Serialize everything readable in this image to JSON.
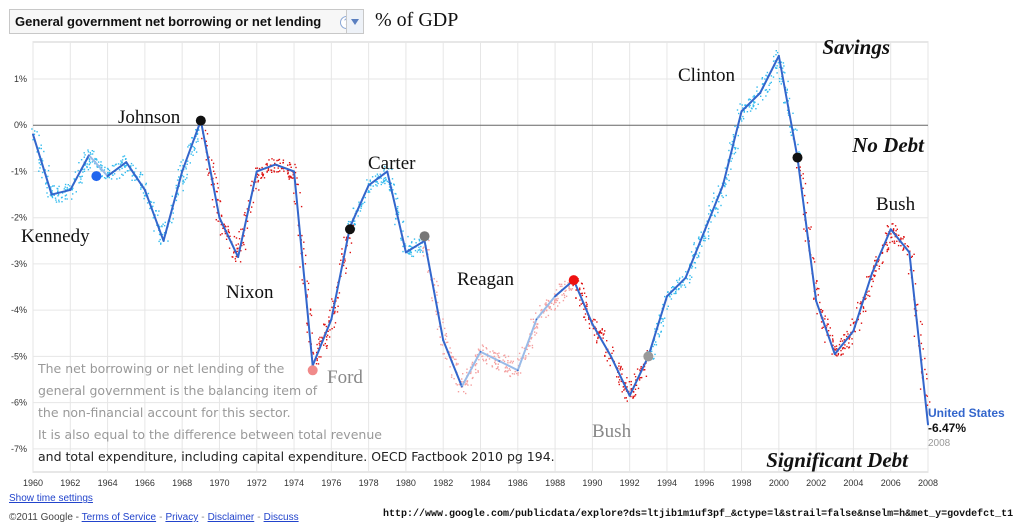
{
  "header": {
    "indicator_label": "General government net borrowing or net lending",
    "help_glyph": "?",
    "unit_label": "% of GDP"
  },
  "links": {
    "show_time_settings": "Show time settings"
  },
  "footer": {
    "copyright": "©2011 Google -",
    "items": [
      "Terms of Service",
      "Privacy",
      "Disclaimer",
      "Discuss"
    ],
    "url": "http://www.google.com/publicdata/explore?ds=ltjib1m1uf3pf_&ctype=l&strail=false&nselm=h&met_y=govdefct_t1"
  },
  "colors": {
    "line": "#3366cc",
    "line_light": "#99bbe8",
    "democrat_dots": "#33bbee",
    "republican_dots": "#dd1111",
    "republican_light_dots": "#f4a0a0",
    "grid": "#e6e6e6",
    "zero_line": "#666666"
  },
  "chart_data": {
    "type": "line",
    "title": "",
    "xlabel": "",
    "ylabel": "% of GDP",
    "ylim": [
      -7.5,
      1.8
    ],
    "xlim": [
      1960,
      2008
    ],
    "grid": true,
    "x_ticks": [
      "1960",
      "1962",
      "1964",
      "1966",
      "1968",
      "1970",
      "1972",
      "1974",
      "1976",
      "1978",
      "1980",
      "1982",
      "1984",
      "1986",
      "1988",
      "1990",
      "1992",
      "1994",
      "1996",
      "1998",
      "2000",
      "2002",
      "2004",
      "2006",
      "2008"
    ],
    "y_ticks": [
      "1%",
      "0%",
      "-1%",
      "-2%",
      "-3%",
      "-4%",
      "-5%",
      "-6%",
      "-7%"
    ],
    "series": [
      {
        "name": "United States",
        "x": [
          1960,
          1961,
          1962,
          1963,
          1964,
          1965,
          1966,
          1967,
          1968,
          1969,
          1970,
          1971,
          1972,
          1973,
          1974,
          1975,
          1976,
          1977,
          1978,
          1979,
          1980,
          1981,
          1982,
          1983,
          1984,
          1985,
          1986,
          1987,
          1988,
          1989,
          1990,
          1991,
          1992,
          1993,
          1994,
          1995,
          1996,
          1997,
          1998,
          1999,
          2000,
          2001,
          2002,
          2003,
          2004,
          2005,
          2006,
          2007,
          2008
        ],
        "y": [
          -0.2,
          -1.5,
          -1.4,
          -0.65,
          -1.1,
          -0.8,
          -1.4,
          -2.5,
          -1.0,
          0.1,
          -2.0,
          -2.85,
          -1.0,
          -0.85,
          -1.0,
          -5.2,
          -4.2,
          -2.2,
          -1.3,
          -1.0,
          -2.75,
          -2.5,
          -4.65,
          -5.65,
          -4.9,
          -5.1,
          -5.3,
          -4.2,
          -3.7,
          -3.35,
          -4.3,
          -5.0,
          -5.85,
          -5.0,
          -3.7,
          -3.3,
          -2.3,
          -1.3,
          0.3,
          0.7,
          1.5,
          -0.7,
          -3.8,
          -4.95,
          -4.45,
          -3.2,
          -2.25,
          -2.75,
          -6.47
        ]
      }
    ],
    "latest": {
      "country": "United States",
      "value": "-6.47%",
      "year": "2008"
    },
    "annotations": {
      "savings": "Savings",
      "no_debt": "No Debt",
      "significant_debt": "Significant Debt",
      "presidents": [
        {
          "name": "Kennedy",
          "year": 1963.4,
          "value": -1.1,
          "marker": "#2266ee"
        },
        {
          "name": "Johnson",
          "year": 1969.0,
          "value": 0.1,
          "marker": "#111111"
        },
        {
          "name": "Nixon",
          "year": 1974.6,
          "value": null,
          "marker": null
        },
        {
          "name": "Ford",
          "year": 1975.0,
          "value": -5.3,
          "marker": "#f08a8a"
        },
        {
          "name": "Carter",
          "year": 1977.0,
          "value": -2.25,
          "marker": "#111111"
        },
        {
          "name": "Reagan",
          "year": 1981.0,
          "value": -2.4,
          "marker": "#777777"
        },
        {
          "name": "Bush",
          "year": 1989.0,
          "value": -3.35,
          "marker": "#ee1111"
        },
        {
          "name": "Clinton",
          "year": 1993.0,
          "value": -5.0,
          "marker": "#999999"
        },
        {
          "name": "Bush",
          "year": 2001.0,
          "value": -0.7,
          "marker": "#111111"
        }
      ],
      "note_lines": [
        "The net borrowing or net lending of the",
        "general government is the balancing item of",
        "the non-financial account for this sector.",
        "It is also equal to the difference between total revenue",
        "and total expenditure, including capital expenditure. OECD Factbook 2010 pg 194."
      ]
    }
  }
}
